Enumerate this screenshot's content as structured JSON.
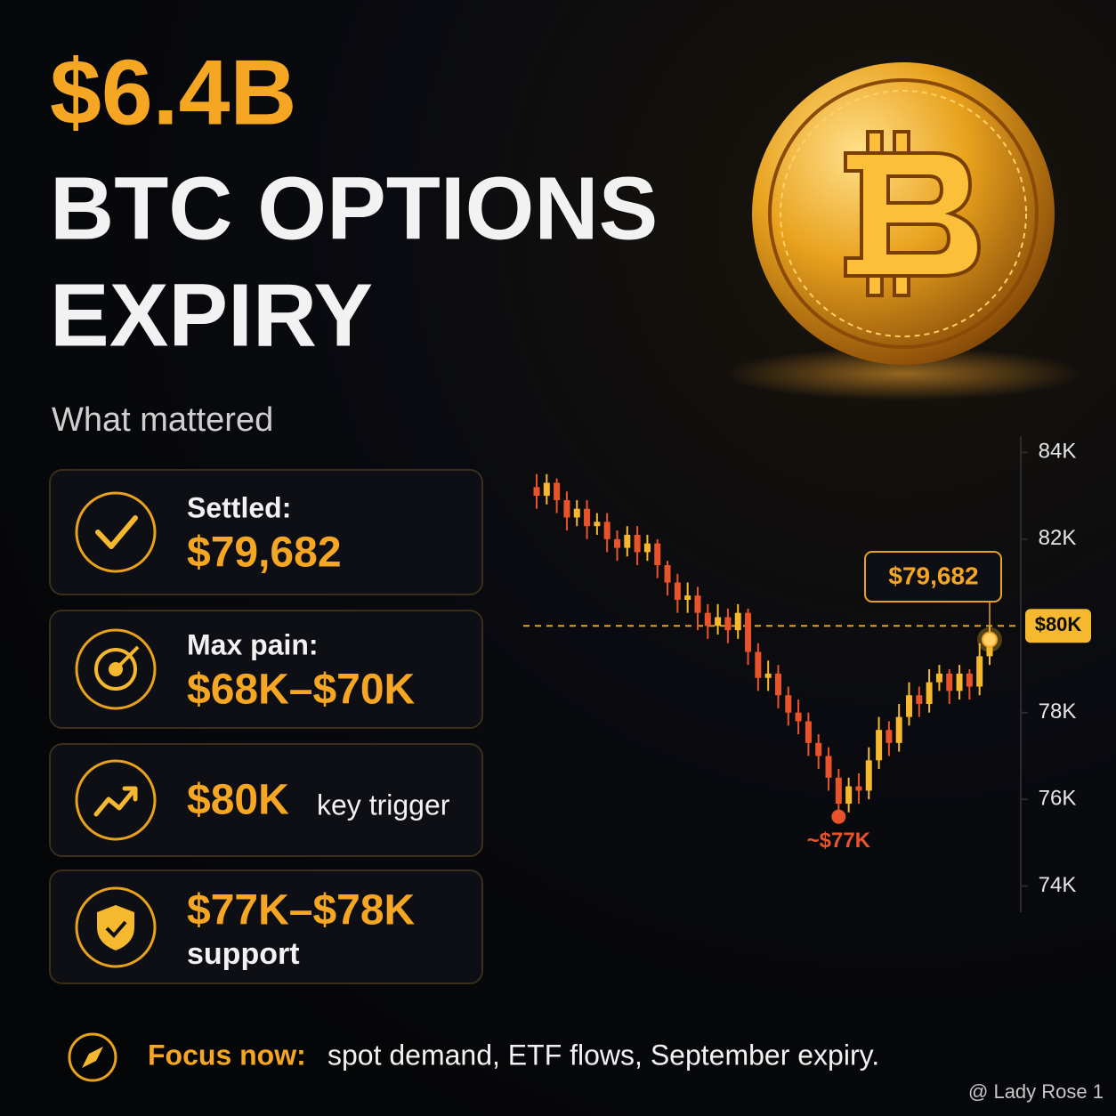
{
  "header": {
    "headline": "$6.4B",
    "title_line1": "BTC OPTIONS",
    "title_line2": "EXPIRY"
  },
  "section_label": "What mattered",
  "cards": [
    {
      "label": "Settled:",
      "value": "$79,682"
    },
    {
      "label": "Max pain:",
      "value": "$68K–$70K"
    },
    {
      "value": "$80K",
      "label": "key trigger"
    },
    {
      "value": "$77K–$78K",
      "label": "support"
    }
  ],
  "chart_data": {
    "type": "candlestick",
    "up_color": "#f5b82e",
    "down_color": "#e8532a",
    "open": [
      83200,
      83000,
      83300,
      82900,
      82500,
      82700,
      82300,
      82400,
      82000,
      81800,
      82100,
      81700,
      81900,
      81400,
      81000,
      80600,
      80700,
      80300,
      80000,
      80200,
      79900,
      80300,
      79400,
      78800,
      78900,
      78400,
      78000,
      77800,
      77300,
      77000,
      76500,
      75900,
      76300,
      76200,
      76900,
      77600,
      77300,
      77900,
      78400,
      78200,
      78700,
      78900,
      78500,
      78900,
      78600,
      79300
    ],
    "high": [
      83500,
      83500,
      83400,
      83100,
      82900,
      82900,
      82600,
      82600,
      82200,
      82300,
      82300,
      82100,
      82000,
      81500,
      81200,
      81000,
      80900,
      80500,
      80500,
      80400,
      80500,
      80400,
      79600,
      79200,
      79100,
      78600,
      78300,
      78000,
      77500,
      77200,
      76700,
      76500,
      76600,
      77200,
      77900,
      77800,
      78200,
      78700,
      78600,
      79000,
      79100,
      79000,
      79100,
      79000,
      79600,
      80000
    ],
    "low": [
      82700,
      82800,
      82600,
      82200,
      82300,
      82000,
      82100,
      81700,
      81500,
      81600,
      81400,
      81500,
      81100,
      80700,
      80300,
      80300,
      79900,
      79700,
      79800,
      79600,
      79700,
      79100,
      78500,
      78500,
      78100,
      77700,
      77500,
      77000,
      76700,
      76200,
      75600,
      75700,
      75900,
      76000,
      76700,
      77000,
      77100,
      77700,
      77900,
      78000,
      78500,
      78200,
      78300,
      78300,
      78400,
      79100
    ],
    "close": [
      83000,
      83300,
      82900,
      82500,
      82700,
      82300,
      82400,
      82000,
      81800,
      82100,
      81700,
      81900,
      81400,
      81000,
      80600,
      80700,
      80300,
      80000,
      80200,
      79900,
      80300,
      79400,
      78800,
      78900,
      78400,
      78000,
      77800,
      77300,
      77000,
      76500,
      75900,
      76300,
      76200,
      76900,
      77600,
      77300,
      77900,
      78400,
      78200,
      78700,
      78900,
      78500,
      78900,
      78600,
      79300,
      79700
    ],
    "ylim": [
      73500,
      84500
    ],
    "yticks": [
      {
        "value": 84000,
        "label": "84K"
      },
      {
        "value": 82000,
        "label": "82K"
      },
      {
        "value": 78000,
        "label": "78K"
      },
      {
        "value": 76000,
        "label": "76K"
      },
      {
        "value": 74000,
        "label": "74K"
      }
    ],
    "key_level": {
      "value": 80000,
      "label": "$80K"
    },
    "settled": {
      "value": 79682,
      "label": "$79,682"
    },
    "low_annotation": "~$77K"
  },
  "footer": {
    "focus_label": "Focus now:",
    "focus_text": "spot demand, ETF flows, September expiry."
  },
  "watermark": "@ Lady Rose 1"
}
